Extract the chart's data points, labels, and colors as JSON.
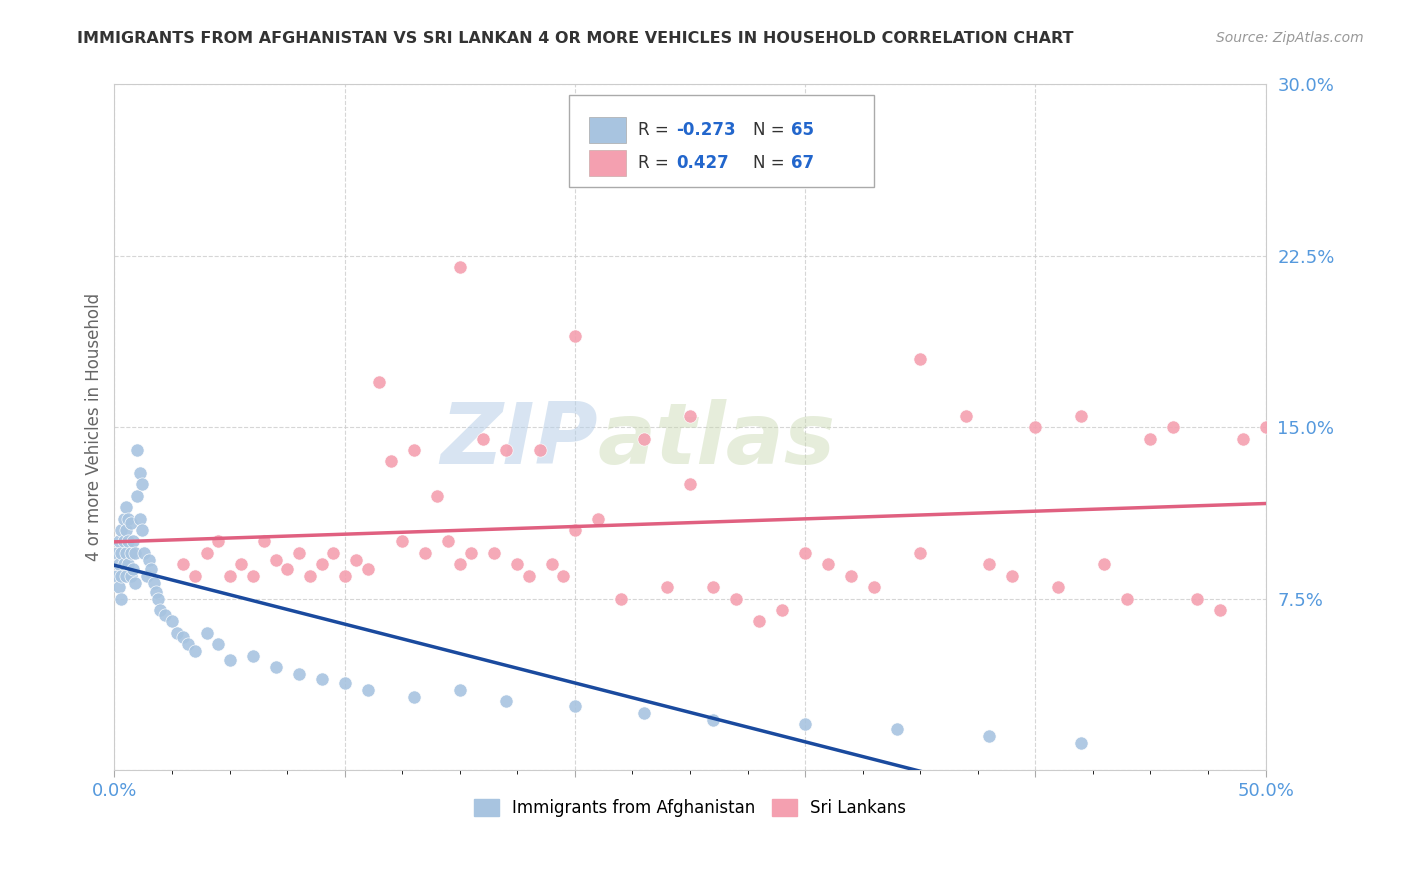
{
  "title": "IMMIGRANTS FROM AFGHANISTAN VS SRI LANKAN 4 OR MORE VEHICLES IN HOUSEHOLD CORRELATION CHART",
  "source": "Source: ZipAtlas.com",
  "ylabel": "4 or more Vehicles in Household",
  "xlim": [
    0.0,
    0.5
  ],
  "ylim": [
    0.0,
    0.3
  ],
  "afghanistan_color": "#a8c4e0",
  "srilanka_color": "#f4a0b0",
  "afghanistan_line_color": "#1a4a9e",
  "srilanka_line_color": "#e06080",
  "afghanistan_x": [
    0.001,
    0.001,
    0.002,
    0.002,
    0.002,
    0.003,
    0.003,
    0.003,
    0.003,
    0.004,
    0.004,
    0.004,
    0.005,
    0.005,
    0.005,
    0.005,
    0.006,
    0.006,
    0.006,
    0.007,
    0.007,
    0.007,
    0.008,
    0.008,
    0.009,
    0.009,
    0.01,
    0.01,
    0.011,
    0.011,
    0.012,
    0.012,
    0.013,
    0.014,
    0.015,
    0.016,
    0.017,
    0.018,
    0.019,
    0.02,
    0.022,
    0.025,
    0.027,
    0.03,
    0.032,
    0.035,
    0.04,
    0.045,
    0.05,
    0.06,
    0.07,
    0.08,
    0.09,
    0.1,
    0.11,
    0.13,
    0.15,
    0.17,
    0.2,
    0.23,
    0.26,
    0.3,
    0.34,
    0.38,
    0.42
  ],
  "afghanistan_y": [
    0.095,
    0.085,
    0.1,
    0.09,
    0.08,
    0.105,
    0.095,
    0.085,
    0.075,
    0.11,
    0.1,
    0.09,
    0.115,
    0.105,
    0.095,
    0.085,
    0.11,
    0.1,
    0.09,
    0.108,
    0.095,
    0.085,
    0.1,
    0.088,
    0.095,
    0.082,
    0.14,
    0.12,
    0.13,
    0.11,
    0.125,
    0.105,
    0.095,
    0.085,
    0.092,
    0.088,
    0.082,
    0.078,
    0.075,
    0.07,
    0.068,
    0.065,
    0.06,
    0.058,
    0.055,
    0.052,
    0.06,
    0.055,
    0.048,
    0.05,
    0.045,
    0.042,
    0.04,
    0.038,
    0.035,
    0.032,
    0.035,
    0.03,
    0.028,
    0.025,
    0.022,
    0.02,
    0.018,
    0.015,
    0.012
  ],
  "srilanka_x": [
    0.03,
    0.035,
    0.04,
    0.045,
    0.05,
    0.055,
    0.06,
    0.065,
    0.07,
    0.075,
    0.08,
    0.085,
    0.09,
    0.095,
    0.1,
    0.105,
    0.11,
    0.115,
    0.12,
    0.125,
    0.13,
    0.135,
    0.14,
    0.145,
    0.15,
    0.155,
    0.16,
    0.165,
    0.17,
    0.175,
    0.18,
    0.185,
    0.19,
    0.195,
    0.2,
    0.21,
    0.22,
    0.23,
    0.24,
    0.25,
    0.26,
    0.27,
    0.28,
    0.29,
    0.3,
    0.31,
    0.32,
    0.33,
    0.35,
    0.37,
    0.38,
    0.39,
    0.4,
    0.41,
    0.42,
    0.43,
    0.44,
    0.45,
    0.46,
    0.47,
    0.48,
    0.49,
    0.5,
    0.35,
    0.15,
    0.2,
    0.25
  ],
  "srilanka_y": [
    0.09,
    0.085,
    0.095,
    0.1,
    0.085,
    0.09,
    0.085,
    0.1,
    0.092,
    0.088,
    0.095,
    0.085,
    0.09,
    0.095,
    0.085,
    0.092,
    0.088,
    0.17,
    0.135,
    0.1,
    0.14,
    0.095,
    0.12,
    0.1,
    0.09,
    0.095,
    0.145,
    0.095,
    0.14,
    0.09,
    0.085,
    0.14,
    0.09,
    0.085,
    0.105,
    0.11,
    0.075,
    0.145,
    0.08,
    0.125,
    0.08,
    0.075,
    0.065,
    0.07,
    0.095,
    0.09,
    0.085,
    0.08,
    0.095,
    0.155,
    0.09,
    0.085,
    0.15,
    0.08,
    0.155,
    0.09,
    0.075,
    0.145,
    0.15,
    0.075,
    0.07,
    0.145,
    0.15,
    0.18,
    0.22,
    0.19,
    0.155
  ]
}
